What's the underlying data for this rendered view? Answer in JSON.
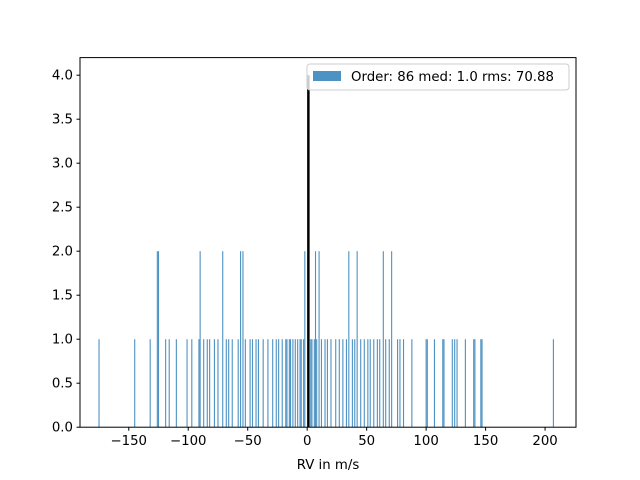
{
  "chart_data": {
    "type": "bar",
    "xlabel": "RV in m/s",
    "ylabel": "",
    "xlim": [
      -191,
      226
    ],
    "ylim": [
      0,
      4.2
    ],
    "xticks": [
      -150,
      -100,
      -50,
      0,
      50,
      100,
      150,
      200
    ],
    "xtick_labels": [
      "−150",
      "−100",
      "−50",
      "0",
      "50",
      "100",
      "150",
      "200"
    ],
    "yticks": [
      0,
      0.5,
      1.0,
      1.5,
      2.0,
      2.5,
      3.0,
      3.5,
      4.0
    ],
    "ytick_labels": [
      "0.0",
      "0.5",
      "1.0",
      "1.5",
      "2.0",
      "2.5",
      "3.0",
      "3.5",
      "4.0"
    ],
    "bin_width": 0.75,
    "bar_color": "#1f77b4",
    "median_line": {
      "x": 1.0,
      "color": "#000000"
    },
    "legend": {
      "label": "Order: 86 med: 1.0 rms: 70.88",
      "placement": "upper right"
    },
    "bins": [
      {
        "x": -175,
        "count": 1
      },
      {
        "x": -145,
        "count": 1
      },
      {
        "x": -132,
        "count": 1
      },
      {
        "x": -126,
        "count": 2
      },
      {
        "x": -125,
        "count": 2
      },
      {
        "x": -119,
        "count": 1
      },
      {
        "x": -116,
        "count": 1
      },
      {
        "x": -110,
        "count": 1
      },
      {
        "x": -101,
        "count": 1
      },
      {
        "x": -97,
        "count": 1
      },
      {
        "x": -91,
        "count": 1
      },
      {
        "x": -90,
        "count": 2
      },
      {
        "x": -87,
        "count": 1
      },
      {
        "x": -84,
        "count": 1
      },
      {
        "x": -82,
        "count": 1
      },
      {
        "x": -78,
        "count": 1
      },
      {
        "x": -75,
        "count": 1
      },
      {
        "x": -71,
        "count": 2
      },
      {
        "x": -68,
        "count": 1
      },
      {
        "x": -66,
        "count": 1
      },
      {
        "x": -63,
        "count": 1
      },
      {
        "x": -58,
        "count": 1
      },
      {
        "x": -56,
        "count": 2
      },
      {
        "x": -54,
        "count": 2
      },
      {
        "x": -52,
        "count": 1
      },
      {
        "x": -48,
        "count": 1
      },
      {
        "x": -46,
        "count": 1
      },
      {
        "x": -43,
        "count": 1
      },
      {
        "x": -41,
        "count": 1
      },
      {
        "x": -37,
        "count": 1
      },
      {
        "x": -33,
        "count": 1
      },
      {
        "x": -29,
        "count": 1
      },
      {
        "x": -26,
        "count": 1
      },
      {
        "x": -24,
        "count": 1
      },
      {
        "x": -21,
        "count": 1
      },
      {
        "x": -18,
        "count": 1
      },
      {
        "x": -17,
        "count": 1
      },
      {
        "x": -15,
        "count": 1
      },
      {
        "x": -14,
        "count": 1
      },
      {
        "x": -12,
        "count": 1
      },
      {
        "x": -10,
        "count": 1
      },
      {
        "x": -8,
        "count": 1
      },
      {
        "x": -6,
        "count": 1
      },
      {
        "x": -5,
        "count": 1
      },
      {
        "x": -3,
        "count": 1
      },
      {
        "x": -2,
        "count": 2
      },
      {
        "x": 1,
        "count": 4
      },
      {
        "x": 3,
        "count": 1
      },
      {
        "x": 4,
        "count": 1
      },
      {
        "x": 6,
        "count": 1
      },
      {
        "x": 7,
        "count": 2
      },
      {
        "x": 8,
        "count": 1
      },
      {
        "x": 10,
        "count": 2
      },
      {
        "x": 12,
        "count": 1
      },
      {
        "x": 15,
        "count": 1
      },
      {
        "x": 17,
        "count": 1
      },
      {
        "x": 20,
        "count": 1
      },
      {
        "x": 24,
        "count": 1
      },
      {
        "x": 27,
        "count": 1
      },
      {
        "x": 30,
        "count": 1
      },
      {
        "x": 33,
        "count": 1
      },
      {
        "x": 35,
        "count": 2
      },
      {
        "x": 38,
        "count": 1
      },
      {
        "x": 40,
        "count": 1
      },
      {
        "x": 42,
        "count": 2
      },
      {
        "x": 45,
        "count": 1
      },
      {
        "x": 48,
        "count": 1
      },
      {
        "x": 51,
        "count": 1
      },
      {
        "x": 53,
        "count": 1
      },
      {
        "x": 56,
        "count": 1
      },
      {
        "x": 59,
        "count": 1
      },
      {
        "x": 61,
        "count": 1
      },
      {
        "x": 64,
        "count": 2
      },
      {
        "x": 66,
        "count": 1
      },
      {
        "x": 69,
        "count": 1
      },
      {
        "x": 71,
        "count": 2
      },
      {
        "x": 76,
        "count": 1
      },
      {
        "x": 78,
        "count": 1
      },
      {
        "x": 81,
        "count": 1
      },
      {
        "x": 88,
        "count": 1
      },
      {
        "x": 100,
        "count": 1
      },
      {
        "x": 101,
        "count": 1
      },
      {
        "x": 107,
        "count": 1
      },
      {
        "x": 114,
        "count": 1
      },
      {
        "x": 115,
        "count": 1
      },
      {
        "x": 122,
        "count": 1
      },
      {
        "x": 124,
        "count": 1
      },
      {
        "x": 126,
        "count": 1
      },
      {
        "x": 133,
        "count": 1
      },
      {
        "x": 140,
        "count": 1
      },
      {
        "x": 141,
        "count": 1
      },
      {
        "x": 146,
        "count": 1
      },
      {
        "x": 147,
        "count": 1
      },
      {
        "x": 207,
        "count": 1
      }
    ]
  }
}
